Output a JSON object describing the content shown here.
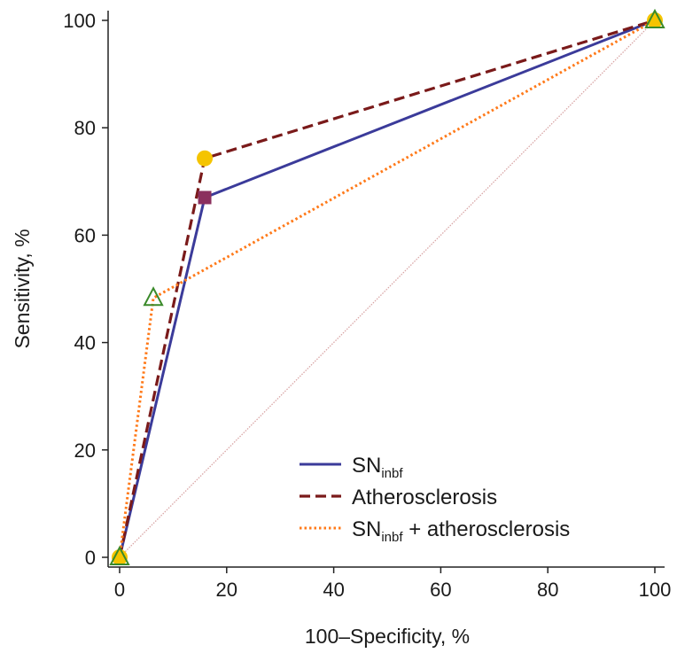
{
  "chart_data": {
    "type": "line",
    "title": "",
    "xlabel": "100–Specificity, %",
    "ylabel": "Sensitivity, %",
    "xlim": [
      0,
      100
    ],
    "ylim": [
      0,
      100
    ],
    "xticks": [
      0,
      20,
      40,
      60,
      80,
      100
    ],
    "yticks": [
      0,
      20,
      40,
      60,
      80,
      100
    ],
    "grid": false,
    "legend_position": "bottom-right",
    "reference_line": {
      "name": "diagonal",
      "x": [
        0,
        100
      ],
      "y": [
        0,
        100
      ],
      "color": "#d9a6a6"
    },
    "series": [
      {
        "name": "SNinbf",
        "label_main": "SN",
        "label_sub": "inbf",
        "label_suffix": "",
        "style": "solid",
        "color": "#3b3b9a",
        "marker": "square",
        "marker_color": "#8b2f5e",
        "x": [
          0,
          15.9,
          100
        ],
        "y": [
          0,
          67,
          100
        ]
      },
      {
        "name": "Atherosclerosis",
        "label_main": "Atherosclerosis",
        "label_sub": "",
        "label_suffix": "",
        "style": "dashed",
        "color": "#7a1a1a",
        "marker": "circle",
        "marker_color": "#f5c400",
        "x": [
          0,
          15.9,
          100
        ],
        "y": [
          0,
          74.3,
          100
        ]
      },
      {
        "name": "SNinbf + atherosclerosis",
        "label_main": "SN",
        "label_sub": "inbf",
        "label_suffix": " + atherosclerosis",
        "style": "dotted",
        "color": "#ff7a1a",
        "marker": "triangle",
        "marker_color": "#3a8a2a",
        "x": [
          0,
          6.3,
          100
        ],
        "y": [
          0,
          48.3,
          100
        ]
      }
    ]
  }
}
